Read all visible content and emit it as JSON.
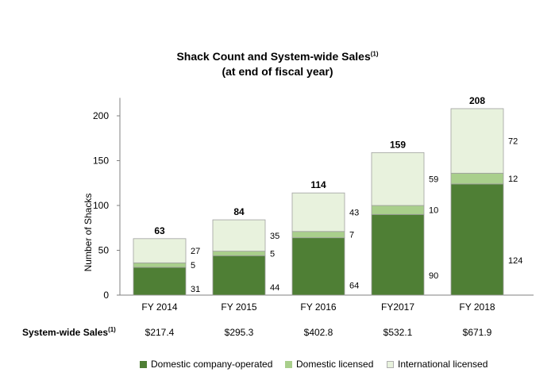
{
  "title": {
    "line1": "Shack Count and System-wide Sales",
    "line1_sup": "(1)",
    "line2": "(at end of fiscal year)"
  },
  "sales": {
    "label": "System-wide Sales",
    "label_sup": "(1)"
  },
  "colors": {
    "domestic_company": "#4f7f35",
    "domestic_licensed": "#a9cf8c",
    "international_licensed": "#e8f2dd",
    "bar_border": "#a0a0a0"
  },
  "chart_data": {
    "type": "bar",
    "stacked": true,
    "categories": [
      "FY 2014",
      "FY 2015",
      "FY 2016",
      "FY2017",
      "FY 2018"
    ],
    "series": [
      {
        "name": "Domestic company-operated",
        "values": [
          31,
          44,
          64,
          90,
          124
        ]
      },
      {
        "name": "Domestic licensed",
        "values": [
          5,
          5,
          7,
          10,
          12
        ]
      },
      {
        "name": "International licensed",
        "values": [
          27,
          35,
          43,
          59,
          72
        ]
      }
    ],
    "totals": [
      63,
      84,
      114,
      159,
      208
    ],
    "system_wide_sales": [
      "$217.4",
      "$295.3",
      "$402.8",
      "$532.1",
      "$671.9"
    ],
    "ylabel": "Number of Shacks",
    "ylim": [
      0,
      220
    ],
    "yticks": [
      0,
      50,
      100,
      150,
      200
    ],
    "grid": false,
    "legend_position": "bottom"
  }
}
